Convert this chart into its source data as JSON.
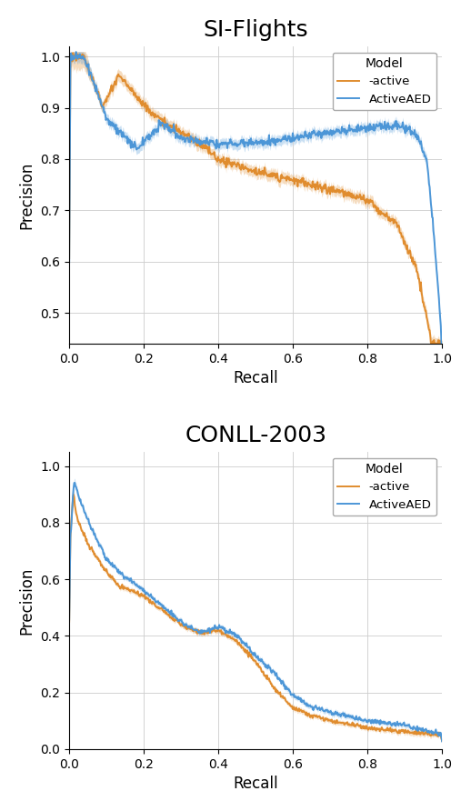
{
  "title1": "SI-Flights",
  "title2": "CONLL-2003",
  "xlabel": "Recall",
  "ylabel": "Precision",
  "color_blue": "#4C96D7",
  "color_orange": "#E08C2E",
  "legend_title": "Model",
  "legend_label_blue": "ActiveAED",
  "legend_label_orange": "-active",
  "figsize": [
    5.18,
    8.92
  ],
  "dpi": 100,
  "title_fontsize": 18,
  "label_fontsize": 12,
  "tick_fontsize": 10
}
